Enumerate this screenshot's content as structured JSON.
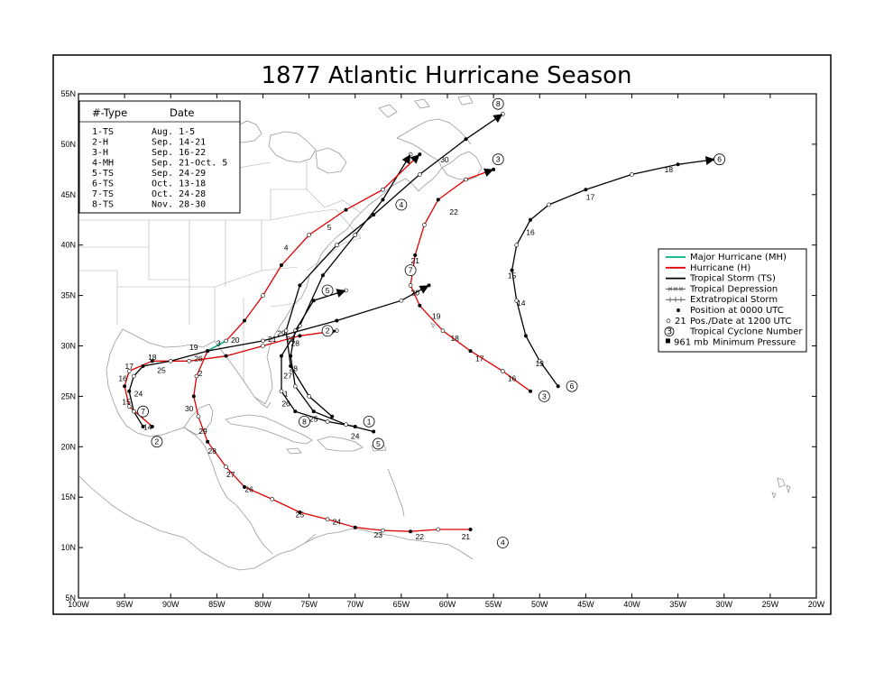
{
  "title": "1877 Atlantic Hurricane Season",
  "axes": {
    "lat_labels": [
      "55N",
      "50N",
      "45N",
      "40N",
      "35N",
      "30N",
      "25N",
      "20N",
      "15N",
      "10N",
      "5N"
    ],
    "lon_labels": [
      "100W",
      "95W",
      "90W",
      "85W",
      "80W",
      "75W",
      "70W",
      "65W",
      "60W",
      "55W",
      "50W",
      "45W",
      "40W",
      "35W",
      "30W",
      "25W",
      "20W"
    ]
  },
  "summary_table": {
    "header_type": "#-Type",
    "header_date": "Date",
    "rows": [
      {
        "type": "1-TS",
        "date": "Aug. 1-5"
      },
      {
        "type": "2-H",
        "date": "Sep. 14-21"
      },
      {
        "type": "3-H",
        "date": "Sep. 16-22"
      },
      {
        "type": "4-MH",
        "date": "Sep. 21-Oct. 5"
      },
      {
        "type": "5-TS",
        "date": "Sep. 24-29"
      },
      {
        "type": "6-TS",
        "date": "Oct. 13-18"
      },
      {
        "type": "7-TS",
        "date": "Oct. 24-28"
      },
      {
        "type": "8-TS",
        "date": "Nov. 28-30"
      }
    ]
  },
  "legend": {
    "items": [
      {
        "label": "Major Hurricane (MH)",
        "kind": "line",
        "color": "#00b08a"
      },
      {
        "label": "Hurricane (H)",
        "kind": "line",
        "color": "#e00000"
      },
      {
        "label": "Tropical Storm (TS)",
        "kind": "line",
        "color": "#000000"
      },
      {
        "label": "Tropical Depression",
        "kind": "xline",
        "color": "#555555"
      },
      {
        "label": "Extratropical Storm",
        "kind": "plusline",
        "color": "#555555"
      },
      {
        "label": "Position at 0000 UTC",
        "kind": "dot"
      },
      {
        "label": "Pos./Date at 1200 UTC",
        "kind": "circle",
        "prefix": "21"
      },
      {
        "label": "Tropical Cyclone Number",
        "kind": "numcircle",
        "prefix": "3"
      },
      {
        "label": "Minimum Pressure",
        "kind": "square",
        "prefix": "961 mb"
      }
    ]
  },
  "colors": {
    "major": "#00b08a",
    "hurricane": "#e00000",
    "storm": "#000000",
    "extratropical": "#555555",
    "coast": "#9a9a9a"
  },
  "tracks": [
    {
      "number": "1",
      "points": [
        [
          -70,
          22
        ],
        [
          -73,
          22.5
        ],
        [
          -76.5,
          23.5
        ],
        [
          -78,
          25.5
        ],
        [
          -78,
          29
        ],
        [
          -76,
          32
        ],
        [
          -73.5,
          37
        ],
        [
          -70,
          41
        ],
        [
          -67,
          44.5
        ],
        [
          -64,
          49
        ]
      ],
      "tags": [
        {
          "t": "1",
          "at": [
            -77.5,
            25
          ]
        }
      ],
      "circle_at": [
        -68.5,
        22.5
      ]
    },
    {
      "number": "2",
      "points": [
        [
          -92,
          22
        ],
        [
          -94.5,
          24
        ],
        [
          -95,
          26
        ],
        [
          -94.5,
          27.5
        ],
        [
          -92,
          28.5
        ],
        [
          -88,
          28.5
        ],
        [
          -84,
          29
        ],
        [
          -80,
          30
        ],
        [
          -76,
          31
        ],
        [
          -72,
          31.5
        ]
      ],
      "tags": [
        {
          "t": "14",
          "at": [
            -92.5,
            21.7
          ]
        },
        {
          "t": "15",
          "at": [
            -94.8,
            24.2
          ]
        },
        {
          "t": "16",
          "at": [
            -95.2,
            26.5
          ]
        },
        {
          "t": "17",
          "at": [
            -94.5,
            27.7
          ]
        },
        {
          "t": "18",
          "at": [
            -92,
            28.6
          ]
        },
        {
          "t": "19",
          "at": [
            -87.5,
            29.6
          ]
        },
        {
          "t": "20",
          "at": [
            -83,
            30.3
          ]
        },
        {
          "t": "21",
          "at": [
            -79,
            30.4
          ]
        }
      ],
      "circle_at": [
        -91.5,
        20.5
      ],
      "circle2_at": [
        -73,
        31.5
      ]
    },
    {
      "number": "3",
      "points": [
        [
          -51,
          25.5
        ],
        [
          -54,
          27.5
        ],
        [
          -57.5,
          29.5
        ],
        [
          -60.5,
          31.5
        ],
        [
          -63,
          34
        ],
        [
          -64,
          36
        ],
        [
          -63.5,
          39
        ],
        [
          -62.5,
          42
        ],
        [
          -61,
          44.5
        ],
        [
          -58,
          46.5
        ],
        [
          -55,
          47.5
        ]
      ],
      "tags": [
        {
          "t": "16",
          "at": [
            -53,
            26.5
          ]
        },
        {
          "t": "17",
          "at": [
            -56.5,
            28.5
          ]
        },
        {
          "t": "18",
          "at": [
            -59.2,
            30.5
          ]
        },
        {
          "t": "19",
          "at": [
            -61.2,
            32.7
          ]
        },
        {
          "t": "20",
          "at": [
            -63.5,
            35
          ]
        },
        {
          "t": "21",
          "at": [
            -63.5,
            38.2
          ]
        },
        {
          "t": "22",
          "at": [
            -59.3,
            43
          ]
        }
      ],
      "circle_at": [
        -49.5,
        25
      ],
      "circle2_at": [
        -54.5,
        48.5
      ]
    },
    {
      "number": "4",
      "points": [
        [
          -57.5,
          11.8
        ],
        [
          -61,
          11.8
        ],
        [
          -64,
          11.6
        ],
        [
          -67,
          11.7
        ],
        [
          -70,
          12
        ],
        [
          -73,
          12.8
        ],
        [
          -76,
          13.5
        ],
        [
          -79,
          14.8
        ],
        [
          -82,
          16
        ],
        [
          -84,
          18
        ],
        [
          -86,
          20.5
        ],
        [
          -87,
          23
        ],
        [
          -87.5,
          25
        ],
        [
          -87.2,
          27
        ],
        [
          -86,
          29.5
        ],
        [
          -84,
          30.5
        ],
        [
          -82,
          32.5
        ],
        [
          -80,
          35
        ],
        [
          -78,
          38
        ],
        [
          -75,
          41
        ],
        [
          -71,
          43.5
        ],
        [
          -67,
          45.5
        ],
        [
          -63,
          49
        ]
      ],
      "tags": [
        {
          "t": "21",
          "at": [
            -58,
            10.8
          ]
        },
        {
          "t": "22",
          "at": [
            -63,
            10.8
          ]
        },
        {
          "t": "23",
          "at": [
            -67.5,
            11
          ]
        },
        {
          "t": "24",
          "at": [
            -72,
            12.3
          ]
        },
        {
          "t": "25",
          "at": [
            -76,
            13
          ]
        },
        {
          "t": "26",
          "at": [
            -81.5,
            15.5
          ]
        },
        {
          "t": "27",
          "at": [
            -83.5,
            17
          ]
        },
        {
          "t": "28",
          "at": [
            -85.5,
            19.3
          ]
        },
        {
          "t": "29",
          "at": [
            -86.5,
            21.3
          ]
        },
        {
          "t": "30",
          "at": [
            -88,
            23.5
          ]
        },
        {
          "t": "2",
          "at": [
            -86.8,
            27
          ]
        },
        {
          "t": "3",
          "at": [
            -84.8,
            30
          ]
        },
        {
          "t": "4",
          "at": [
            -77.5,
            39.5
          ]
        },
        {
          "t": "5",
          "at": [
            -72.8,
            41.5
          ]
        }
      ],
      "circle_at": [
        -54,
        10.5
      ],
      "circle2_at": [
        -65,
        44
      ]
    },
    {
      "number": "5",
      "points": [
        [
          -68,
          21.5
        ],
        [
          -71,
          22.2
        ],
        [
          -74.5,
          23.5
        ],
        [
          -76.5,
          26
        ],
        [
          -77,
          29
        ],
        [
          -76.5,
          31.5
        ],
        [
          -74.5,
          34.5
        ],
        [
          -71,
          35.5
        ]
      ],
      "tags": [
        {
          "t": "24",
          "at": [
            -70,
            20.8
          ]
        },
        {
          "t": "25",
          "at": [
            -74.5,
            22.5
          ]
        },
        {
          "t": "26",
          "at": [
            -77.5,
            24
          ]
        },
        {
          "t": "27",
          "at": [
            -77.3,
            26.8
          ]
        },
        {
          "t": "28",
          "at": [
            -76.5,
            30
          ]
        },
        {
          "t": "29",
          "at": [
            -73,
            35.3
          ]
        }
      ],
      "circle_at": [
        -67.5,
        20.3
      ],
      "circle2_at": [
        -73,
        35.5
      ]
    },
    {
      "number": "6",
      "points": [
        [
          -48,
          26
        ],
        [
          -50,
          28.5
        ],
        [
          -51.5,
          31
        ],
        [
          -52.5,
          34.5
        ],
        [
          -53,
          37.5
        ],
        [
          -52.5,
          40
        ],
        [
          -51,
          42.5
        ],
        [
          -49,
          44
        ],
        [
          -45,
          45.5
        ],
        [
          -40,
          47
        ],
        [
          -35,
          48
        ],
        [
          -31,
          48.5
        ]
      ],
      "tags": [
        {
          "t": "13",
          "at": [
            -50,
            28
          ]
        },
        {
          "t": "14",
          "at": [
            -52,
            34
          ]
        },
        {
          "t": "15",
          "at": [
            -53,
            36.7
          ]
        },
        {
          "t": "16",
          "at": [
            -51,
            41
          ]
        },
        {
          "t": "17",
          "at": [
            -44.5,
            44.5
          ]
        },
        {
          "t": "18",
          "at": [
            -36,
            47.2
          ]
        }
      ],
      "circle_at": [
        -46.5,
        26
      ],
      "circle2_at": [
        -30.5,
        48.5
      ]
    },
    {
      "number": "7",
      "points": [
        [
          -93,
          22
        ],
        [
          -94,
          23.5
        ],
        [
          -94.5,
          25.5
        ],
        [
          -94,
          27
        ],
        [
          -93,
          28
        ],
        [
          -90,
          28.5
        ],
        [
          -86,
          29.5
        ],
        [
          -80,
          30.5
        ],
        [
          -72,
          32.5
        ],
        [
          -65,
          34.5
        ],
        [
          -62,
          36
        ]
      ],
      "tags": [
        {
          "t": "24",
          "at": [
            -93.5,
            25
          ]
        },
        {
          "t": "25",
          "at": [
            -91,
            27.3
          ]
        },
        {
          "t": "26",
          "at": [
            -87,
            28.5
          ]
        },
        {
          "t": "27",
          "at": [
            -77,
            30.4
          ]
        }
      ],
      "circle_at": [
        -93,
        23.5
      ],
      "circle2_at": [
        -64,
        37.5
      ]
    },
    {
      "number": "8",
      "points": [
        [
          -72.5,
          23
        ],
        [
          -75,
          25
        ],
        [
          -77,
          28
        ],
        [
          -77.5,
          31.5
        ],
        [
          -76,
          36
        ],
        [
          -72,
          40
        ],
        [
          -68,
          43
        ],
        [
          -63,
          47
        ],
        [
          -58,
          50.5
        ],
        [
          -54,
          53
        ]
      ],
      "tags": [
        {
          "t": "28",
          "at": [
            -76.7,
            27.5
          ]
        },
        {
          "t": "29",
          "at": [
            -78,
            31
          ]
        },
        {
          "t": "30",
          "at": [
            -60.3,
            48.2
          ]
        }
      ],
      "circle_at": [
        -75.5,
        22.5
      ],
      "circle2_at": [
        -54.5,
        54
      ]
    }
  ]
}
